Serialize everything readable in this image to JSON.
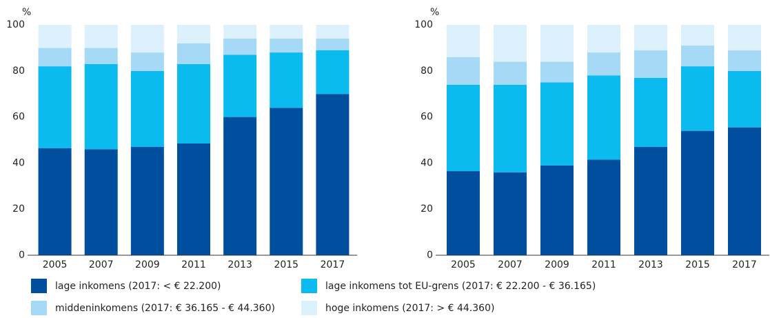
{
  "chart_data": [
    {
      "type": "stacked_bar",
      "ylabel": "%",
      "categories": [
        "2005",
        "2007",
        "2009",
        "2011",
        "2013",
        "2015",
        "2017"
      ],
      "ylim": [
        0,
        100
      ],
      "yticks": [
        0,
        20,
        40,
        60,
        80,
        100
      ],
      "grid": false,
      "series": [
        {
          "name": "lage inkomens (2017: < € 22.200)",
          "color": "#004f9f",
          "values": [
            46.5,
            46,
            47,
            48.5,
            60,
            64,
            70
          ]
        },
        {
          "name": "lage inkomens tot EU-grens (2017: € 22.200 - € 36.165)",
          "color": "#0bbbef",
          "values": [
            35.5,
            37,
            33,
            34.5,
            27,
            24,
            19
          ]
        },
        {
          "name": "middeninkomens (2017: € 36.165 - € 44.360)",
          "color": "#a6d9f5",
          "values": [
            8,
            7,
            8,
            9,
            7,
            6,
            5
          ]
        },
        {
          "name": "hoge inkomens (2017: > € 44.360)",
          "color": "#ddf1fc",
          "values": [
            10,
            10,
            12,
            8,
            6,
            6,
            6
          ]
        }
      ]
    },
    {
      "type": "stacked_bar",
      "ylabel": "%",
      "categories": [
        "2005",
        "2007",
        "2009",
        "2011",
        "2013",
        "2015",
        "2017"
      ],
      "ylim": [
        0,
        100
      ],
      "yticks": [
        0,
        20,
        40,
        60,
        80,
        100
      ],
      "grid": false,
      "series": [
        {
          "color": "#004f9f",
          "values": [
            36.5,
            36,
            39,
            41.5,
            47,
            54,
            55.5
          ]
        },
        {
          "color": "#0bbbef",
          "values": [
            37.5,
            38,
            36,
            36.5,
            30,
            28,
            24.5
          ]
        },
        {
          "color": "#a6d9f5",
          "values": [
            12,
            10,
            9,
            10,
            12,
            9,
            9
          ]
        },
        {
          "color": "#ddf1fc",
          "values": [
            14,
            16,
            16,
            12,
            11,
            9,
            11
          ]
        }
      ]
    }
  ]
}
